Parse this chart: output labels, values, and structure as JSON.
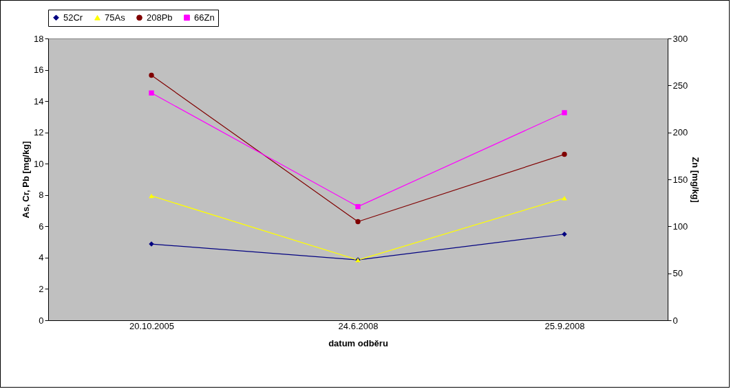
{
  "chart_data": {
    "type": "line",
    "xlabel": "datum odběru",
    "ylabel": "As, Cr, Pb [mg/kg]",
    "y2label": "Zn [mg/kg]",
    "categories": [
      "20.10.2005",
      "24.6.2008",
      "25.9.2008"
    ],
    "series": [
      {
        "name": "52Cr",
        "color": "#000080",
        "marker": "diamond",
        "values": [
          4.87,
          3.86,
          5.5
        ]
      },
      {
        "name": "75As",
        "color": "#ffff00",
        "marker": "triangle",
        "values": [
          7.95,
          3.85,
          7.8
        ]
      },
      {
        "name": "208Pb",
        "color": "#800000",
        "marker": "circle",
        "values": [
          15.65,
          6.3,
          10.6
        ]
      },
      {
        "name": "66Zn",
        "color": "#ff00ff",
        "marker": "square",
        "axis": "y2",
        "values": [
          242,
          121,
          221
        ]
      }
    ],
    "ylim": [
      0,
      18
    ],
    "yticks": [
      0,
      2,
      4,
      6,
      8,
      10,
      12,
      14,
      16,
      18
    ],
    "y2lim": [
      0,
      300
    ],
    "y2ticks": [
      0,
      50,
      100,
      150,
      200,
      250,
      300
    ],
    "grid": false,
    "legend": "top",
    "line_style": "solid"
  }
}
